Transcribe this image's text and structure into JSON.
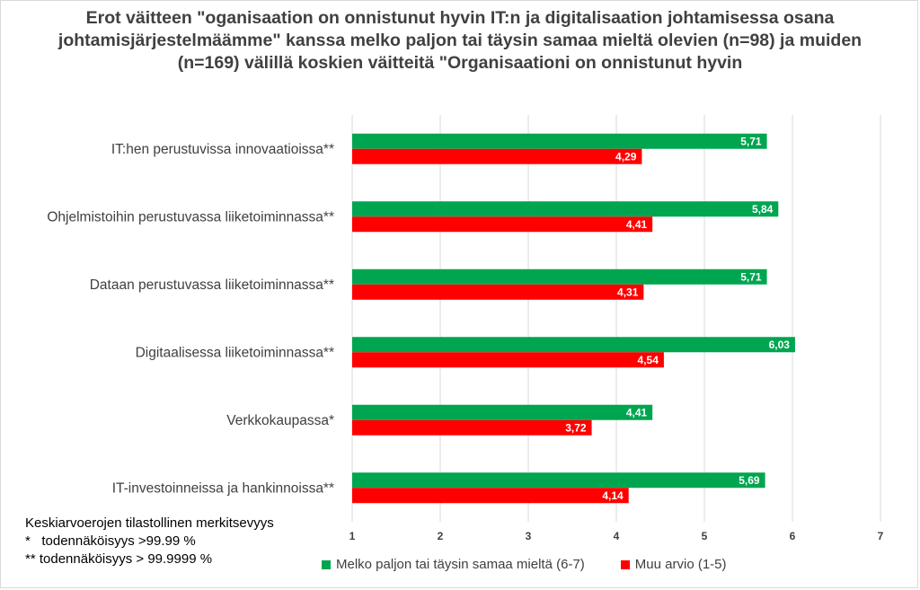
{
  "chart_data": {
    "type": "bar",
    "orientation": "horizontal",
    "title": "Erot väitteen \"oganisaation on onnistunut hyvin IT:n ja digitalisaation johtamisessa osana johtamisjärjestelmäämme\" kanssa melko paljon tai täysin samaa mieltä olevien (n=98) ja muiden (n=169) välillä koskien väitteitä \"Organisaationi on onnistunut hyvin",
    "categories": [
      "IT:hen perustuvissa innovaatioissa**",
      "Ohjelmistoihin perustuvassa liiketoiminnassa**",
      "Dataan perustuvassa liiketoiminnassa**",
      "Digitaalisessa liiketoiminnassa**",
      "Verkkokaupassa*",
      "IT-investoinneissa ja hankinnoissa**"
    ],
    "series": [
      {
        "name": "Melko paljon tai täysin samaa mieltä (6-7)",
        "color": "#00a550",
        "values": [
          5.71,
          5.84,
          5.71,
          6.03,
          4.41,
          5.69
        ],
        "labels": [
          "5,71",
          "5,84",
          "5,71",
          "6,03",
          "4,41",
          "5,69"
        ]
      },
      {
        "name": "Muu arvio (1-5)",
        "color": "#ff0000",
        "values": [
          4.29,
          4.41,
          4.31,
          4.54,
          3.72,
          4.14
        ],
        "labels": [
          "4,29",
          "4,41",
          "4,31",
          "4,54",
          "3,72",
          "4,14"
        ]
      }
    ],
    "xlim": [
      1,
      7
    ],
    "xticks": [
      "1",
      "2",
      "3",
      "4",
      "5",
      "6",
      "7"
    ],
    "grid": true,
    "legend_position": "bottom"
  },
  "notes": {
    "line1": "Keskiarvoerojen tilastollinen merkitsevyys",
    "line2": "*   todennäköisyys >99.99 %",
    "line3": "** todennäköisyys > 99.9999 %"
  }
}
